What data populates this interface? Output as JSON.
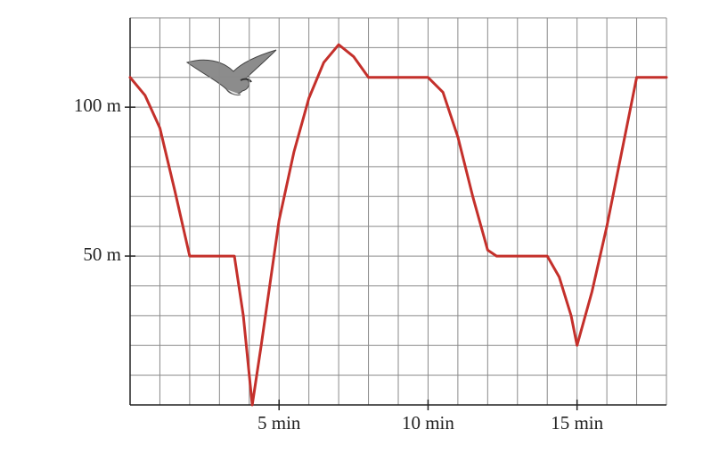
{
  "chart_data": {
    "type": "line",
    "x": [
      0,
      0.5,
      1,
      1.5,
      2,
      3,
      3.5,
      3.8,
      4.1,
      4.4,
      5,
      5.5,
      6,
      6.5,
      7,
      7.5,
      8,
      10,
      10.5,
      11,
      11.5,
      12,
      12.3,
      14,
      14.4,
      14.8,
      15,
      15.5,
      16,
      16.5,
      17,
      18
    ],
    "values": [
      110,
      104,
      93,
      72,
      50,
      50,
      50,
      30,
      0,
      20,
      62,
      85,
      103,
      115,
      121,
      117,
      110,
      110,
      105,
      90,
      70,
      52,
      50,
      50,
      43,
      30,
      20,
      38,
      60,
      85,
      110,
      110
    ],
    "color": "#c4302b",
    "xlim": [
      0,
      18
    ],
    "ylim": [
      0,
      130
    ],
    "xticks": [
      {
        "value": 5,
        "label": "5 min"
      },
      {
        "value": 10,
        "label": "10 min"
      },
      {
        "value": 15,
        "label": "15 min"
      }
    ],
    "yticks": [
      {
        "value": 50,
        "label": "50 m"
      },
      {
        "value": 100,
        "label": "100 m"
      }
    ],
    "grid": true
  }
}
